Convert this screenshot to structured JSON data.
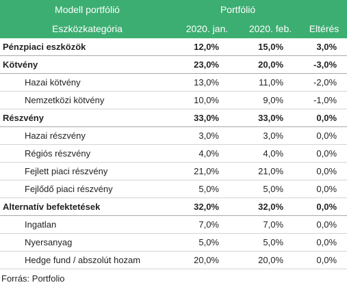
{
  "table": {
    "header": {
      "top": [
        "Modell portfólió",
        "Portfólió"
      ],
      "columns": [
        "Eszközkategória",
        "2020. jan.",
        "2020. feb.",
        "Eltérés"
      ]
    },
    "groups": [
      {
        "label": "Pénzpiaci eszközök",
        "values": [
          "12,0%",
          "15,0%",
          "3,0%"
        ],
        "items": []
      },
      {
        "label": "Kötvény",
        "values": [
          "23,0%",
          "20,0%",
          "-3,0%"
        ],
        "items": [
          {
            "label": "Hazai kötvény",
            "values": [
              "13,0%",
              "11,0%",
              "-2,0%"
            ]
          },
          {
            "label": "Nemzetközi kötvény",
            "values": [
              "10,0%",
              "9,0%",
              "-1,0%"
            ]
          }
        ]
      },
      {
        "label": "Részvény",
        "values": [
          "33,0%",
          "33,0%",
          "0,0%"
        ],
        "items": [
          {
            "label": "Hazai részvény",
            "values": [
              "3,0%",
              "3,0%",
              "0,0%"
            ]
          },
          {
            "label": "Régiós részvény",
            "values": [
              "4,0%",
              "4,0%",
              "0,0%"
            ]
          },
          {
            "label": "Fejlett piaci részvény",
            "values": [
              "21,0%",
              "21,0%",
              "0,0%"
            ]
          },
          {
            "label": "Fejlődő piaci részvény",
            "values": [
              "5,0%",
              "5,0%",
              "0,0%"
            ]
          }
        ]
      },
      {
        "label": "Alternatív befektetések",
        "values": [
          "32,0%",
          "32,0%",
          "0,0%"
        ],
        "items": [
          {
            "label": "Ingatlan",
            "values": [
              "7,0%",
              "7,0%",
              "0,0%"
            ]
          },
          {
            "label": "Nyersanyag",
            "values": [
              "5,0%",
              "5,0%",
              "0,0%"
            ]
          },
          {
            "label": "Hedge fund / abszolút hozam",
            "values": [
              "20,0%",
              "20,0%",
              "0,0%"
            ]
          }
        ]
      }
    ]
  },
  "source": "Forrás: Portfolio"
}
